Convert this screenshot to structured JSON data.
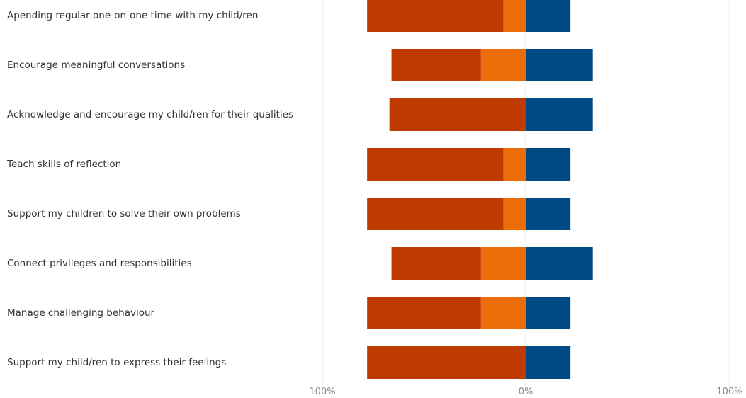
{
  "chart_data": {
    "type": "bar",
    "orientation": "horizontal",
    "stacked": "diverging",
    "xlim": [
      -100,
      100
    ],
    "x_ticks": [
      "100%",
      "0%",
      "100%"
    ],
    "grid": true,
    "categories": [
      "Apending regular one-on-one time with my child/ren",
      "Encourage meaningful conversations",
      "Acknowledge and encourage my child/ren for their qualities",
      "Teach skills of reflection",
      "Support my children to solve their own problems",
      "Connect privileges and responsibilities",
      "Manage challenging behaviour",
      "Support my child/ren to express their feelings"
    ],
    "series": [
      {
        "side": "negative",
        "color": "#bf3a00",
        "values": [
          67,
          44,
          67,
          67,
          67,
          44,
          56,
          78
        ]
      },
      {
        "side": "negative",
        "color": "#ec6c08",
        "values": [
          11,
          22,
          0,
          11,
          11,
          22,
          22,
          0
        ]
      },
      {
        "side": "positive",
        "color": "#004a84",
        "values": [
          22,
          33,
          33,
          22,
          22,
          33,
          22,
          22
        ]
      }
    ]
  }
}
